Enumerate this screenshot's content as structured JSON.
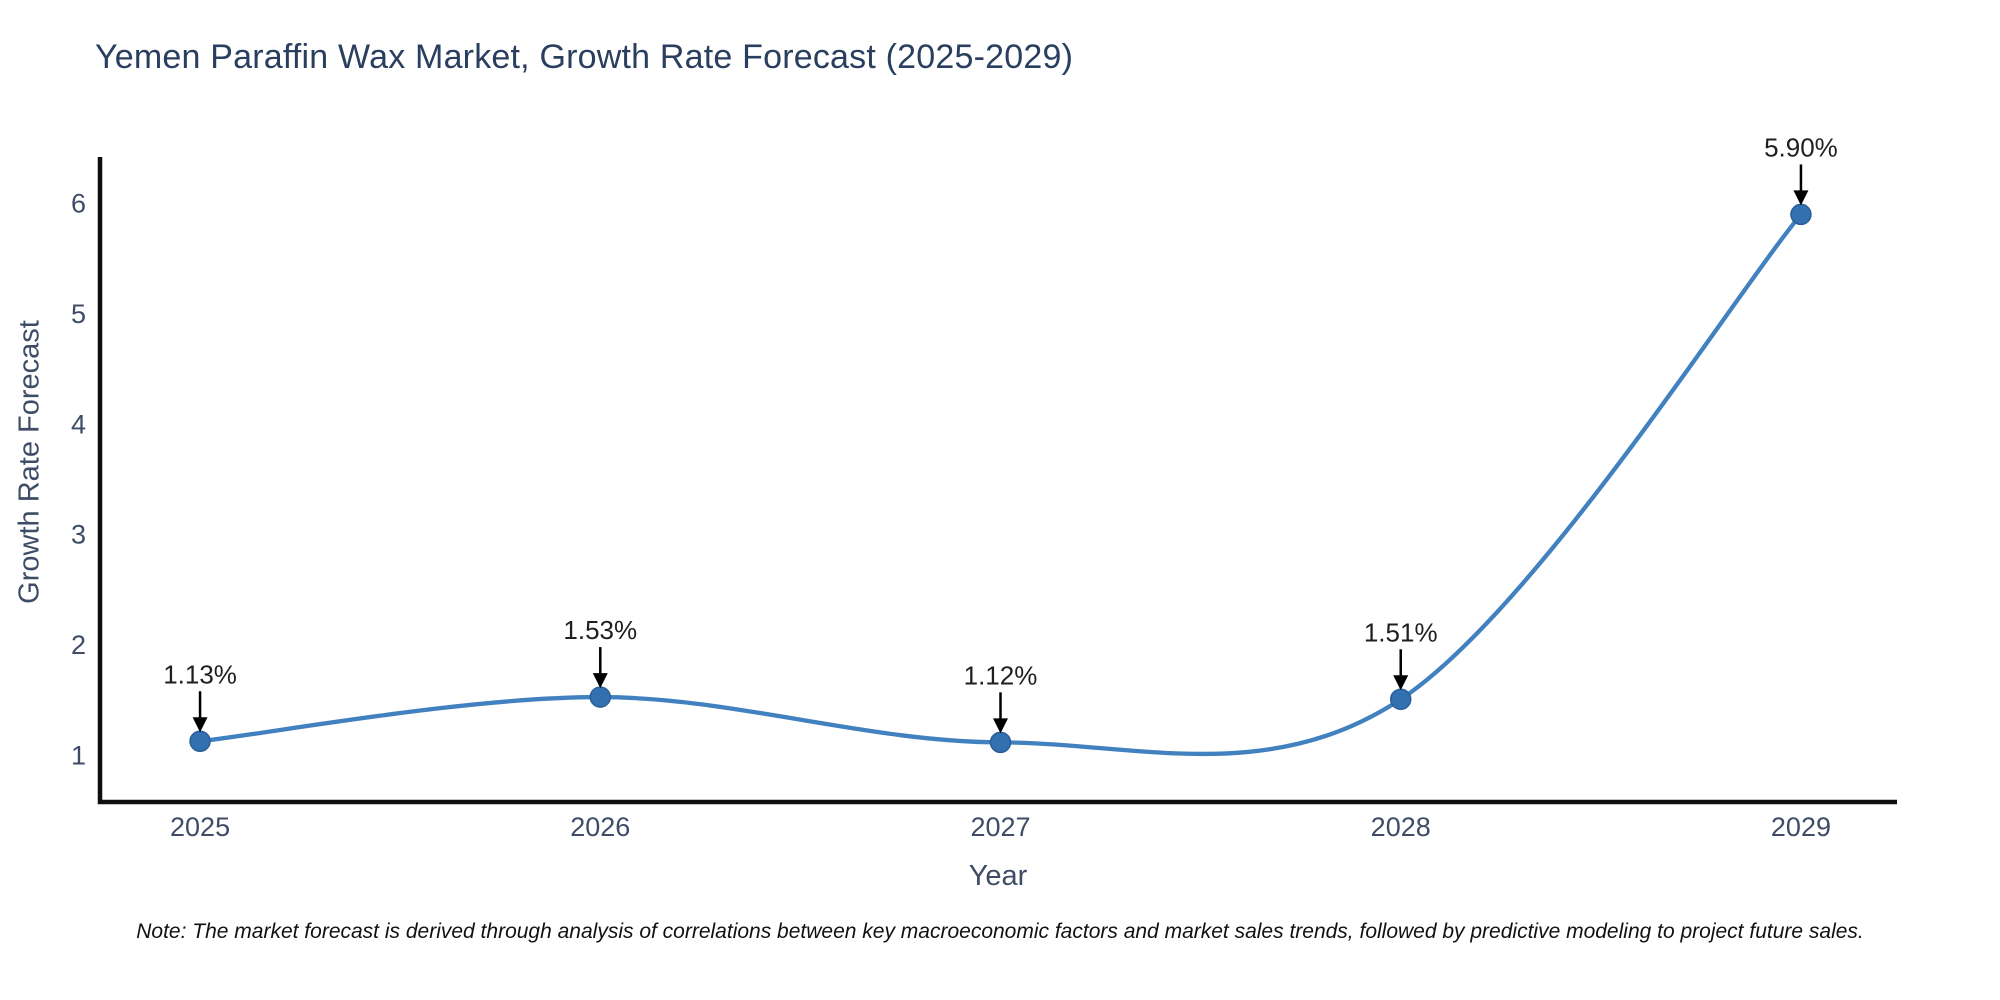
{
  "title": "Yemen Paraffin Wax Market, Growth Rate Forecast (2025-2029)",
  "note": "Note: The market forecast is derived through analysis of correlations between key macroeconomic factors and market sales trends, followed by predictive modeling to project future sales.",
  "chart_data": {
    "type": "line",
    "title": "Yemen Paraffin Wax Market, Growth Rate Forecast (2025-2029)",
    "x": [
      2025,
      2026,
      2027,
      2028,
      2029
    ],
    "values": [
      1.13,
      1.53,
      1.12,
      1.51,
      5.9
    ],
    "point_labels": [
      "1.13%",
      "1.53%",
      "1.12%",
      "1.51%",
      "5.90%"
    ],
    "xlabel": "Year",
    "ylabel": "Growth Rate Forecast",
    "yticks": [
      1,
      2,
      3,
      4,
      5,
      6
    ],
    "xticks": [
      "2025",
      "2026",
      "2027",
      "2028",
      "2029"
    ],
    "xlim": [
      2024.75,
      2029.24
    ],
    "ylim": [
      0.58,
      6.42
    ],
    "grid": false,
    "legend": false,
    "line_shape": "spline",
    "annotations_have_arrows": true,
    "line_color": "#4181bf",
    "marker_color": "#3270b2",
    "marker_edge_color": "#2a5f98",
    "axis_color": "#0f0f0f",
    "tick_color": "#3e4c66",
    "title_color": "#2a3f5f",
    "annotation_color": "#1f1f1f"
  }
}
